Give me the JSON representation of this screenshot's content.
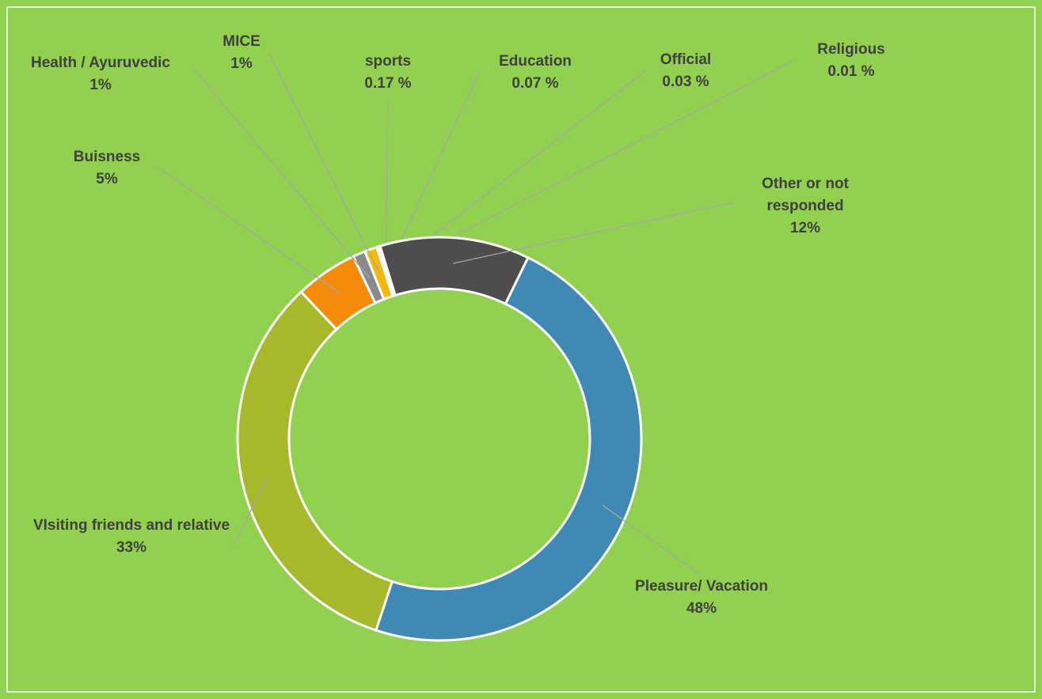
{
  "chart_data": {
    "type": "donut",
    "categories": [
      "Pleasure/ Vacation",
      "VIsiting friends and relative",
      "Buisness",
      "Health / Ayuruvedic",
      "MICE",
      "sports",
      "Education",
      "Official",
      "Religious",
      "Other or not responded"
    ],
    "values": [
      48,
      33,
      5,
      1,
      1,
      0.17,
      0.07,
      0.03,
      0.01,
      12
    ],
    "value_labels": [
      "48%",
      "33%",
      "5%",
      "1%",
      "1%",
      "0.17 %",
      "0.07 %",
      "0.03 %",
      "0.01 %",
      "12%"
    ],
    "colors": [
      "#3f8ab4",
      "#a8b82b",
      "#f58b0b",
      "#8a8a8a",
      "#f5b90a",
      "#d9d9d9",
      "#3f8ab4",
      "#a8b82b",
      "#f58b0b",
      "#4d4d4d"
    ]
  }
}
